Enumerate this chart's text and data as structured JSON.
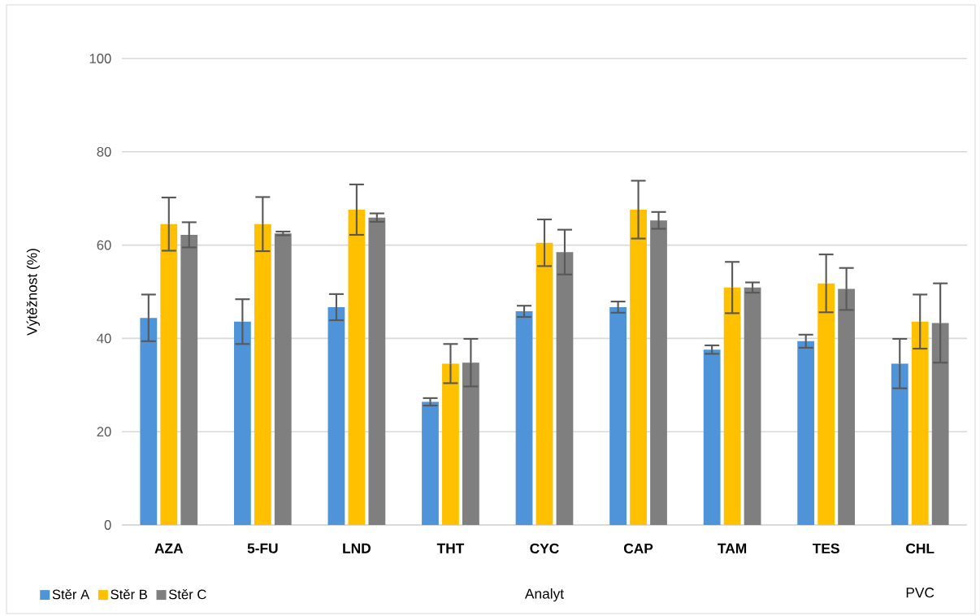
{
  "chart_data": {
    "type": "bar",
    "xlabel": "Analyt",
    "ylabel": "Výtěžnost (%)",
    "categories": [
      "AZA",
      "5-FU",
      "LND",
      "THT",
      "CYC",
      "CAP",
      "TAM",
      "TES",
      "CHL"
    ],
    "series": [
      {
        "name": "Stěr A",
        "color": "#4f94d8",
        "values": [
          44.4,
          43.6,
          46.7,
          26.4,
          45.8,
          46.7,
          37.6,
          39.4,
          34.6
        ],
        "errors": [
          5.0,
          4.8,
          2.8,
          0.8,
          1.2,
          1.2,
          0.9,
          1.4,
          5.3
        ]
      },
      {
        "name": "Stěr B",
        "color": "#ffc000",
        "values": [
          64.5,
          64.5,
          67.6,
          34.6,
          60.5,
          67.6,
          50.9,
          51.8,
          43.6
        ],
        "errors": [
          5.7,
          5.8,
          5.4,
          4.2,
          5.0,
          6.2,
          5.5,
          6.2,
          5.8
        ]
      },
      {
        "name": "Stěr C",
        "color": "#7f7f7f",
        "values": [
          62.2,
          62.5,
          65.9,
          34.8,
          58.5,
          65.3,
          50.9,
          50.6,
          43.3
        ],
        "errors": [
          2.7,
          0.4,
          0.9,
          5.1,
          4.8,
          1.8,
          1.1,
          4.5,
          8.5
        ]
      }
    ],
    "ylim": [
      0,
      100
    ],
    "yticks": [
      0,
      20,
      40,
      60,
      80,
      100
    ],
    "grid": "y",
    "legend": "bottom left",
    "annotations": [
      "PVC"
    ]
  }
}
